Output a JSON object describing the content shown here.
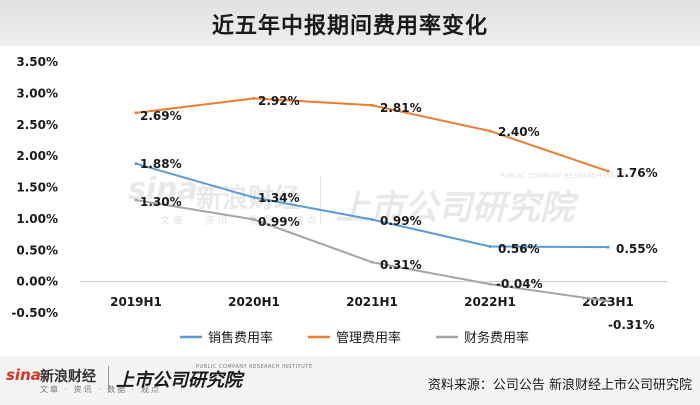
{
  "chart_data": {
    "type": "line",
    "title": "近五年中报期间费用率变化",
    "categories": [
      "2019H1",
      "2020H1",
      "2021H1",
      "2022H1",
      "2023H1"
    ],
    "ylim": [
      -0.5,
      3.5
    ],
    "yticks": [
      "3.50%",
      "3.00%",
      "2.50%",
      "2.00%",
      "1.50%",
      "1.00%",
      "0.50%",
      "0.00%",
      "-0.50%"
    ],
    "ytick_values": [
      3.5,
      3.0,
      2.5,
      2.0,
      1.5,
      1.0,
      0.5,
      0.0,
      -0.5
    ],
    "grid": false,
    "legend_position": "bottom",
    "series": [
      {
        "name": "销售费用率",
        "color": "#5b9bd5",
        "values": [
          1.88,
          1.34,
          0.99,
          0.56,
          0.55
        ],
        "labels": [
          "1.88%",
          "1.34%",
          "0.99%",
          "0.56%",
          "0.55%"
        ]
      },
      {
        "name": "管理费用率",
        "color": "#ed7d31",
        "values": [
          2.69,
          2.92,
          2.81,
          2.4,
          1.76
        ],
        "labels": [
          "2.69%",
          "2.92%",
          "2.81%",
          "2.40%",
          "1.76%"
        ]
      },
      {
        "name": "财务费用率",
        "color": "#a5a5a5",
        "values": [
          1.3,
          0.99,
          0.31,
          -0.04,
          -0.31
        ],
        "labels": [
          "1.30%",
          "0.99%",
          "0.31%",
          "-0.04%",
          "-0.31%"
        ]
      }
    ]
  },
  "footer": {
    "logo_sina": "sina",
    "logo_sina_cn": "新浪财经",
    "logo_sina_sub": "文章 · 资讯 · 数据 · 观点",
    "logo_institute": "上市公司研究院",
    "logo_institute_en": "PUBLIC COMPANY RESEARCH INSTITUTE",
    "source": "资料来源：公司公告 新浪财经上市公司研究院"
  },
  "watermark": {
    "sina": "sina",
    "sina_cn": "新浪财经",
    "sina_sub": "文章 · 资讯 · 数据 · 观点",
    "institute": "上市公司研究院",
    "institute_en": "PUBLIC COMPANY RESEARCH INSTITUTE"
  }
}
